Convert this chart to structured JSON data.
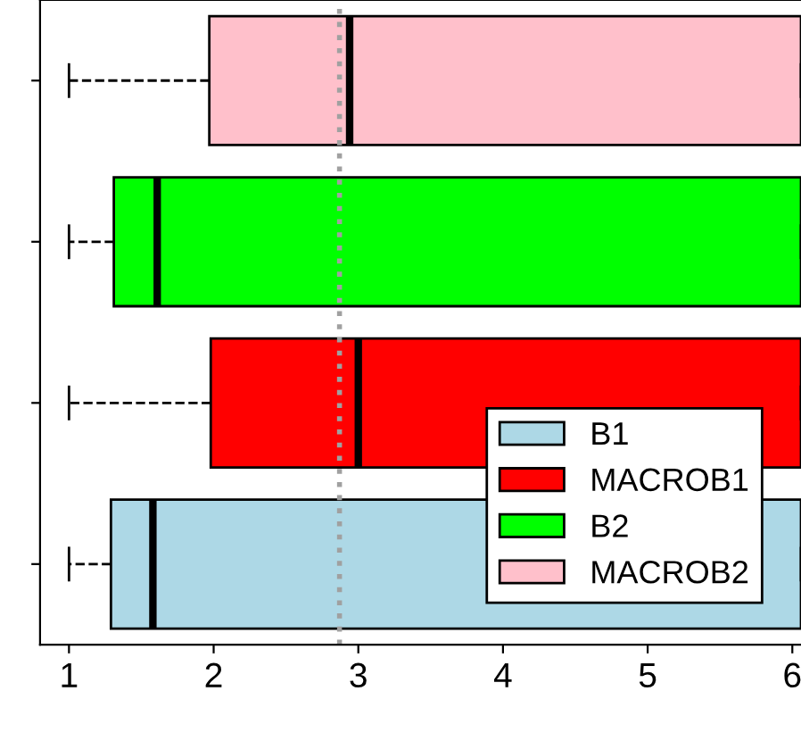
{
  "chart_data": {
    "type": "box",
    "orientation": "horizontal",
    "categories": [
      null,
      null,
      null,
      null
    ],
    "series": [
      {
        "name": "B1",
        "color": "#add8e6",
        "boxes": [
          null,
          null,
          null,
          {
            "low": 1,
            "q1": 1.29,
            "median": 1.58,
            "q3": 6.06,
            "high": 6.06
          }
        ]
      },
      {
        "name": "MACROB1",
        "color": "#ff0000",
        "boxes": [
          null,
          null,
          {
            "low": 1,
            "q1": 1.98,
            "median": 3.0,
            "q3": 6.06,
            "high": 6.06
          },
          null
        ]
      },
      {
        "name": "B2",
        "color": "#00ff00",
        "boxes": [
          null,
          {
            "low": 1,
            "q1": 1.31,
            "median": 1.61,
            "q3": 6.06,
            "high": 6.06
          },
          null,
          null
        ]
      },
      {
        "name": "MACROB2",
        "color": "#ffc0cb",
        "boxes": [
          {
            "low": 1,
            "q1": 1.97,
            "median": 2.94,
            "q3": 6.06,
            "high": 6.06
          },
          null,
          null,
          null
        ]
      }
    ],
    "xlim": [
      0.8,
      6.06
    ],
    "xticks": [
      1,
      2,
      3,
      4,
      5,
      6
    ],
    "ref_lines": [
      {
        "axis": "x",
        "value": 2.87,
        "color": "#a0a0a0",
        "line_style": "dotted"
      }
    ],
    "tick_labels": "x",
    "grid": false,
    "legend": "bottom right"
  }
}
